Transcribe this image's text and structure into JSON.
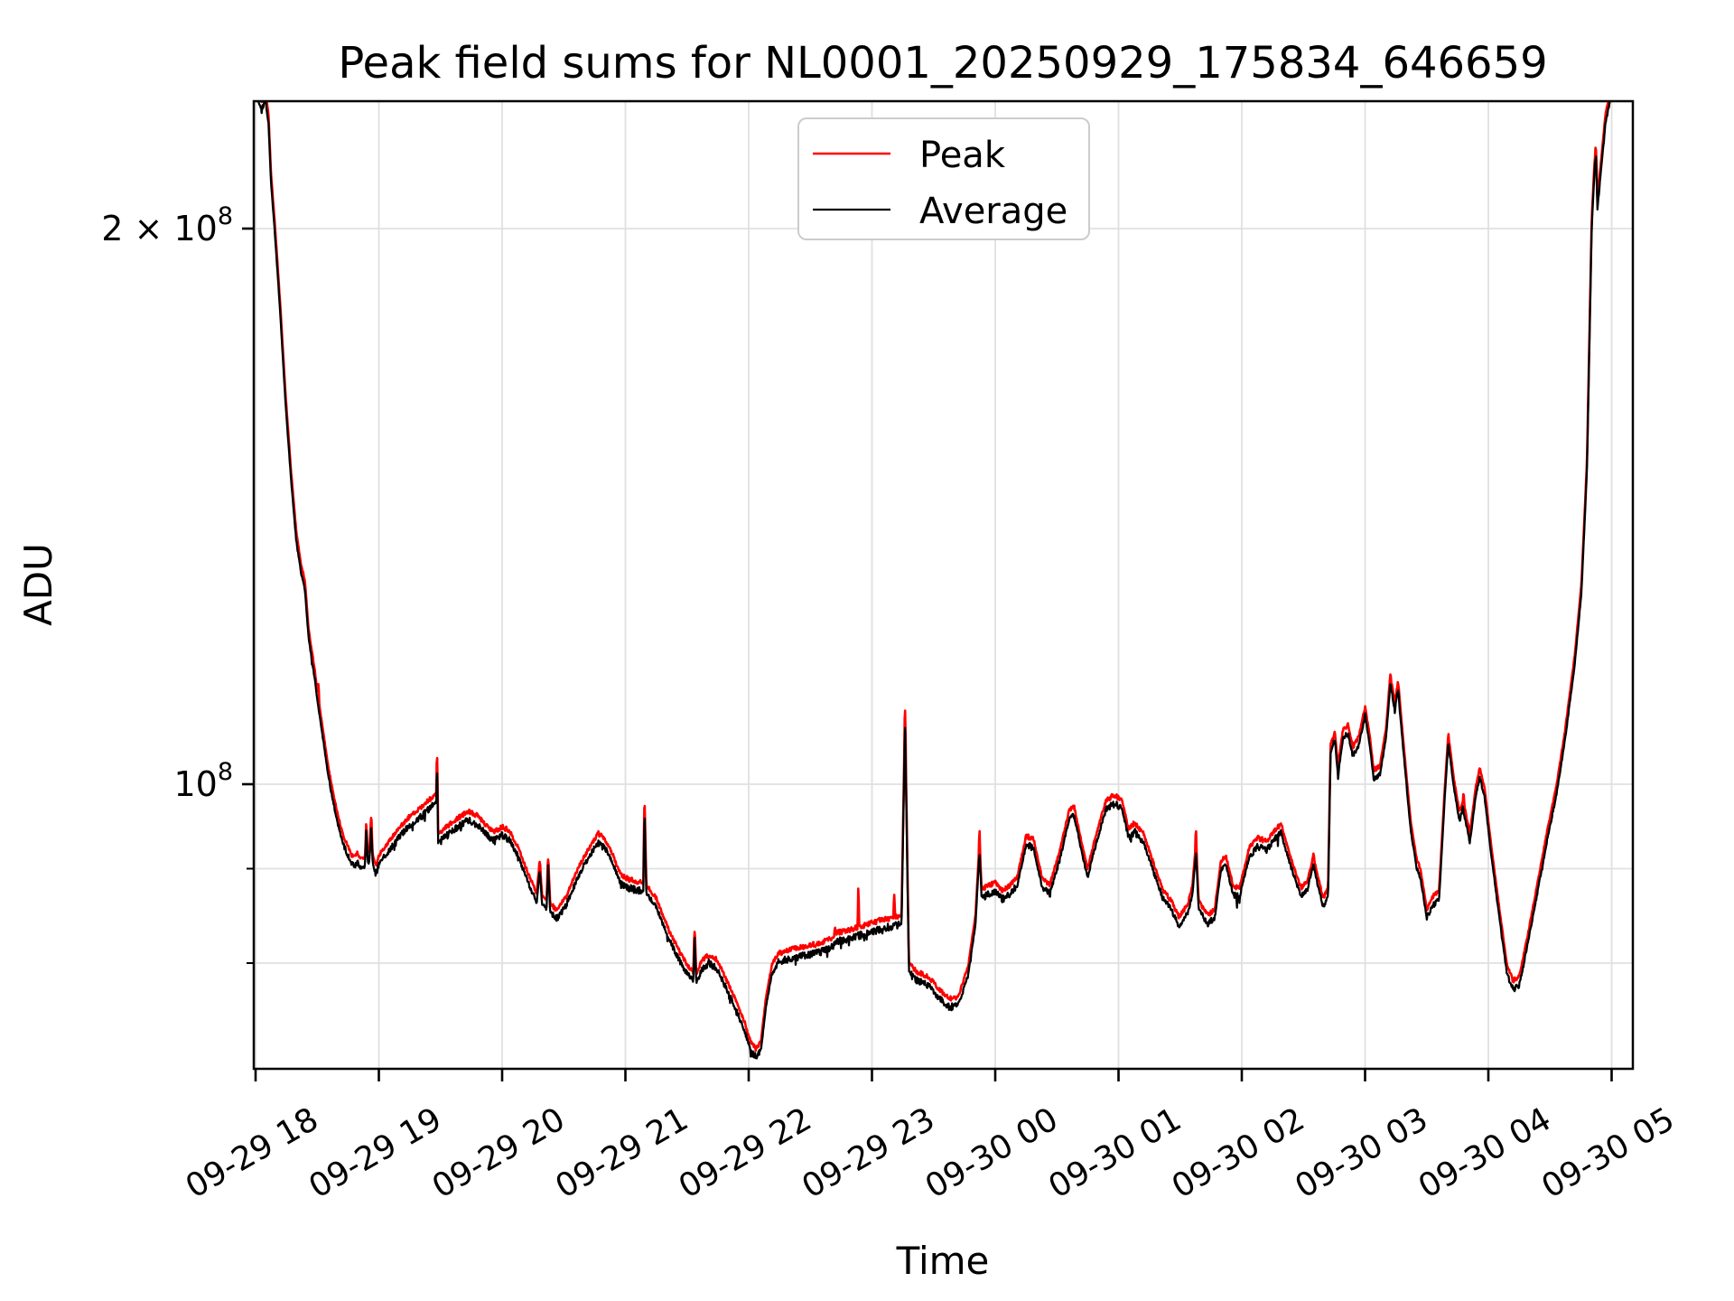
{
  "figure": {
    "title": "Peak field sums for NL0001_20250929_175834_646659",
    "xlabel": "Time",
    "ylabel": "ADU"
  },
  "legend": {
    "entries": [
      {
        "label": "Peak",
        "color": "#ff0000"
      },
      {
        "label": "Average",
        "color": "#000000"
      }
    ]
  },
  "axes": {
    "x_tick_labels": [
      "09-29 18",
      "09-29 19",
      "09-29 20",
      "09-29 21",
      "09-29 22",
      "09-29 23",
      "09-30 00",
      "09-30 01",
      "09-30 02",
      "09-30 03",
      "09-30 04",
      "09-30 05"
    ],
    "y_major_ticks": [
      {
        "value": 200000000,
        "base": "2 × 10",
        "exp": "8"
      },
      {
        "value": 100000000,
        "base": "10",
        "exp": "8"
      }
    ],
    "y_minor_tick_values": [
      90000000,
      80000000
    ],
    "ylim": [
      70000000,
      234500000
    ],
    "x_hours_range": [
      -0.015,
      11.172
    ],
    "grid": true
  },
  "style": {
    "peak_color": "#ff0000",
    "average_color": "#000000",
    "grid_color": "#e0e0e0",
    "legend_border": "#cccccc",
    "spine_color": "#000000",
    "background": "#ffffff",
    "noise": {
      "avg_amp": 0.005,
      "peak_amp": 0.0035,
      "downspike_prob": 0.03,
      "downspike_mag": 0.012,
      "seed": 7,
      "slope_damp": 4
    }
  },
  "chart_data": {
    "type": "line",
    "title": "Peak field sums for NL0001_20250929_175834_646659",
    "xlabel": "Time",
    "ylabel": "ADU",
    "x_unit": "hours since 2025-09-29 18:00",
    "value_unit": "1e8 ADU",
    "yscale": "log",
    "legend_position": "upper center",
    "series": [
      {
        "name": "Peak",
        "color": "#ff0000",
        "construction": "average multiplied by peak_ratio plus extra spikes",
        "peak_ratio": 1.011,
        "spike_halfwidth_hours": 0.007,
        "spikes": [
          [
            0.51,
            1.135
          ],
          [
            0.938,
            0.96
          ],
          [
            1.472,
            1.035
          ],
          [
            2.305,
            0.908
          ],
          [
            2.373,
            0.91
          ],
          [
            2.8,
            0.94
          ],
          [
            3.155,
            0.978
          ],
          [
            3.562,
            0.833
          ],
          [
            4.7,
            0.838
          ],
          [
            4.89,
            0.884
          ],
          [
            5.18,
            0.875
          ],
          [
            5.268,
            1.098
          ],
          [
            5.872,
            0.943
          ],
          [
            7.628,
            0.945
          ],
          [
            8.32,
            0.952
          ],
          [
            8.58,
            0.917
          ],
          [
            9.8,
            0.99
          ],
          [
            10.872,
            2.21
          ]
        ]
      },
      {
        "name": "Average",
        "color": "#000000",
        "anchors": [
          [
            -0.015,
            2.55
          ],
          [
            0.02,
            2.345
          ],
          [
            0.05,
            2.32
          ],
          [
            0.08,
            2.345
          ],
          [
            0.105,
            2.28
          ],
          [
            0.125,
            2.12
          ],
          [
            0.154,
            2.0
          ],
          [
            0.2,
            1.8
          ],
          [
            0.24,
            1.62
          ],
          [
            0.285,
            1.47
          ],
          [
            0.33,
            1.355
          ],
          [
            0.37,
            1.3
          ],
          [
            0.4,
            1.275
          ],
          [
            0.43,
            1.2
          ],
          [
            0.476,
            1.145
          ],
          [
            0.51,
            1.1
          ],
          [
            0.55,
            1.055
          ],
          [
            0.586,
            1.015
          ],
          [
            0.62,
            0.985
          ],
          [
            0.667,
            0.952
          ],
          [
            0.71,
            0.928
          ],
          [
            0.755,
            0.913
          ],
          [
            0.79,
            0.903
          ],
          [
            0.83,
            0.907
          ],
          [
            0.864,
            0.9
          ],
          [
            0.888,
            0.903
          ],
          [
            0.898,
            0.946
          ],
          [
            0.91,
            0.906
          ],
          [
            0.925,
            0.912
          ],
          [
            0.938,
            0.95
          ],
          [
            0.95,
            0.905
          ],
          [
            0.965,
            0.898
          ],
          [
            0.98,
            0.894
          ],
          [
            1.0,
            0.905
          ],
          [
            1.06,
            0.916
          ],
          [
            1.15,
            0.934
          ],
          [
            1.25,
            0.95
          ],
          [
            1.35,
            0.962
          ],
          [
            1.43,
            0.973
          ],
          [
            1.465,
            0.978
          ],
          [
            1.472,
            1.024
          ],
          [
            1.481,
            0.93
          ],
          [
            1.53,
            0.936
          ],
          [
            1.62,
            0.946
          ],
          [
            1.72,
            0.956
          ],
          [
            1.8,
            0.951
          ],
          [
            1.88,
            0.938
          ],
          [
            1.94,
            0.932
          ],
          [
            2.0,
            0.938
          ],
          [
            2.06,
            0.933
          ],
          [
            2.13,
            0.914
          ],
          [
            2.21,
            0.885
          ],
          [
            2.28,
            0.863
          ],
          [
            2.305,
            0.898
          ],
          [
            2.325,
            0.86
          ],
          [
            2.36,
            0.856
          ],
          [
            2.373,
            0.902
          ],
          [
            2.39,
            0.853
          ],
          [
            2.44,
            0.845
          ],
          [
            2.52,
            0.86
          ],
          [
            2.62,
            0.892
          ],
          [
            2.72,
            0.917
          ],
          [
            2.78,
            0.93
          ],
          [
            2.84,
            0.922
          ],
          [
            2.9,
            0.905
          ],
          [
            2.96,
            0.884
          ],
          [
            3.02,
            0.879
          ],
          [
            3.1,
            0.876
          ],
          [
            3.145,
            0.874
          ],
          [
            3.155,
            0.968
          ],
          [
            3.17,
            0.872
          ],
          [
            3.25,
            0.858
          ],
          [
            3.35,
            0.825
          ],
          [
            3.45,
            0.8
          ],
          [
            3.52,
            0.786
          ],
          [
            3.55,
            0.782
          ],
          [
            3.562,
            0.826
          ],
          [
            3.575,
            0.78
          ],
          [
            3.62,
            0.794
          ],
          [
            3.68,
            0.8
          ],
          [
            3.74,
            0.795
          ],
          [
            3.82,
            0.775
          ],
          [
            3.9,
            0.754
          ],
          [
            3.97,
            0.734
          ],
          [
            4.02,
            0.716
          ],
          [
            4.06,
            0.711
          ],
          [
            4.1,
            0.718
          ],
          [
            4.14,
            0.758
          ],
          [
            4.19,
            0.79
          ],
          [
            4.24,
            0.801
          ],
          [
            4.32,
            0.804
          ],
          [
            4.45,
            0.808
          ],
          [
            4.58,
            0.811
          ],
          [
            4.68,
            0.817
          ],
          [
            4.72,
            0.822
          ],
          [
            4.85,
            0.826
          ],
          [
            4.95,
            0.83
          ],
          [
            5.05,
            0.834
          ],
          [
            5.15,
            0.837
          ],
          [
            5.24,
            0.84
          ],
          [
            5.268,
            1.083
          ],
          [
            5.3,
            0.792
          ],
          [
            5.36,
            0.783
          ],
          [
            5.46,
            0.778
          ],
          [
            5.55,
            0.765
          ],
          [
            5.63,
            0.757
          ],
          [
            5.7,
            0.759
          ],
          [
            5.78,
            0.788
          ],
          [
            5.84,
            0.84
          ],
          [
            5.872,
            0.92
          ],
          [
            5.89,
            0.868
          ],
          [
            5.95,
            0.872
          ],
          [
            6.0,
            0.875
          ],
          [
            6.06,
            0.866
          ],
          [
            6.12,
            0.872
          ],
          [
            6.18,
            0.882
          ],
          [
            6.25,
            0.927
          ],
          [
            6.31,
            0.924
          ],
          [
            6.38,
            0.88
          ],
          [
            6.44,
            0.872
          ],
          [
            6.52,
            0.908
          ],
          [
            6.6,
            0.958
          ],
          [
            6.64,
            0.962
          ],
          [
            6.7,
            0.92
          ],
          [
            6.75,
            0.891
          ],
          [
            6.82,
            0.93
          ],
          [
            6.9,
            0.97
          ],
          [
            6.97,
            0.976
          ],
          [
            7.03,
            0.969
          ],
          [
            7.08,
            0.936
          ],
          [
            7.13,
            0.942
          ],
          [
            7.2,
            0.931
          ],
          [
            7.3,
            0.89
          ],
          [
            7.36,
            0.867
          ],
          [
            7.43,
            0.855
          ],
          [
            7.49,
            0.838
          ],
          [
            7.56,
            0.851
          ],
          [
            7.6,
            0.872
          ],
          [
            7.628,
            0.92
          ],
          [
            7.65,
            0.856
          ],
          [
            7.72,
            0.84
          ],
          [
            7.78,
            0.846
          ],
          [
            7.83,
            0.898
          ],
          [
            7.87,
            0.905
          ],
          [
            7.93,
            0.871
          ],
          [
            7.98,
            0.868
          ],
          [
            8.06,
            0.914
          ],
          [
            8.13,
            0.925
          ],
          [
            8.2,
            0.921
          ],
          [
            8.28,
            0.936
          ],
          [
            8.32,
            0.941
          ],
          [
            8.4,
            0.901
          ],
          [
            8.48,
            0.869
          ],
          [
            8.53,
            0.876
          ],
          [
            8.58,
            0.904
          ],
          [
            8.62,
            0.88
          ],
          [
            8.66,
            0.858
          ],
          [
            8.7,
            0.87
          ],
          [
            8.72,
            1.04
          ],
          [
            8.755,
            1.056
          ],
          [
            8.78,
            1.012
          ],
          [
            8.82,
            1.058
          ],
          [
            8.86,
            1.066
          ],
          [
            8.9,
            1.036
          ],
          [
            8.95,
            1.05
          ],
          [
            9.0,
            1.09
          ],
          [
            9.04,
            1.048
          ],
          [
            9.07,
            1.006
          ],
          [
            9.12,
            1.012
          ],
          [
            9.17,
            1.06
          ],
          [
            9.205,
            1.134
          ],
          [
            9.24,
            1.096
          ],
          [
            9.268,
            1.124
          ],
          [
            9.31,
            1.044
          ],
          [
            9.37,
            0.944
          ],
          [
            9.42,
            0.9
          ],
          [
            9.45,
            0.89
          ],
          [
            9.5,
            0.846
          ],
          [
            9.55,
            0.86
          ],
          [
            9.6,
            0.866
          ],
          [
            9.645,
            0.98
          ],
          [
            9.675,
            1.054
          ],
          [
            9.72,
            0.996
          ],
          [
            9.765,
            0.956
          ],
          [
            9.795,
            0.97
          ],
          [
            9.85,
            0.93
          ],
          [
            9.9,
            0.988
          ],
          [
            9.93,
            1.008
          ],
          [
            9.97,
            0.984
          ],
          [
            10.02,
            0.92
          ],
          [
            10.08,
            0.856
          ],
          [
            10.15,
            0.79
          ],
          [
            10.2,
            0.774
          ],
          [
            10.25,
            0.778
          ],
          [
            10.32,
            0.82
          ],
          [
            10.4,
            0.875
          ],
          [
            10.48,
            0.935
          ],
          [
            10.55,
            0.985
          ],
          [
            10.62,
            1.055
          ],
          [
            10.7,
            1.16
          ],
          [
            10.755,
            1.27
          ],
          [
            10.8,
            1.48
          ],
          [
            10.838,
            2.0
          ],
          [
            10.862,
            2.155
          ],
          [
            10.872,
            2.195
          ],
          [
            10.885,
            2.05
          ],
          [
            10.905,
            2.12
          ],
          [
            10.95,
            2.28
          ],
          [
            10.99,
            2.35
          ],
          [
            11.05,
            2.43
          ],
          [
            11.17,
            2.5
          ]
        ]
      }
    ]
  }
}
